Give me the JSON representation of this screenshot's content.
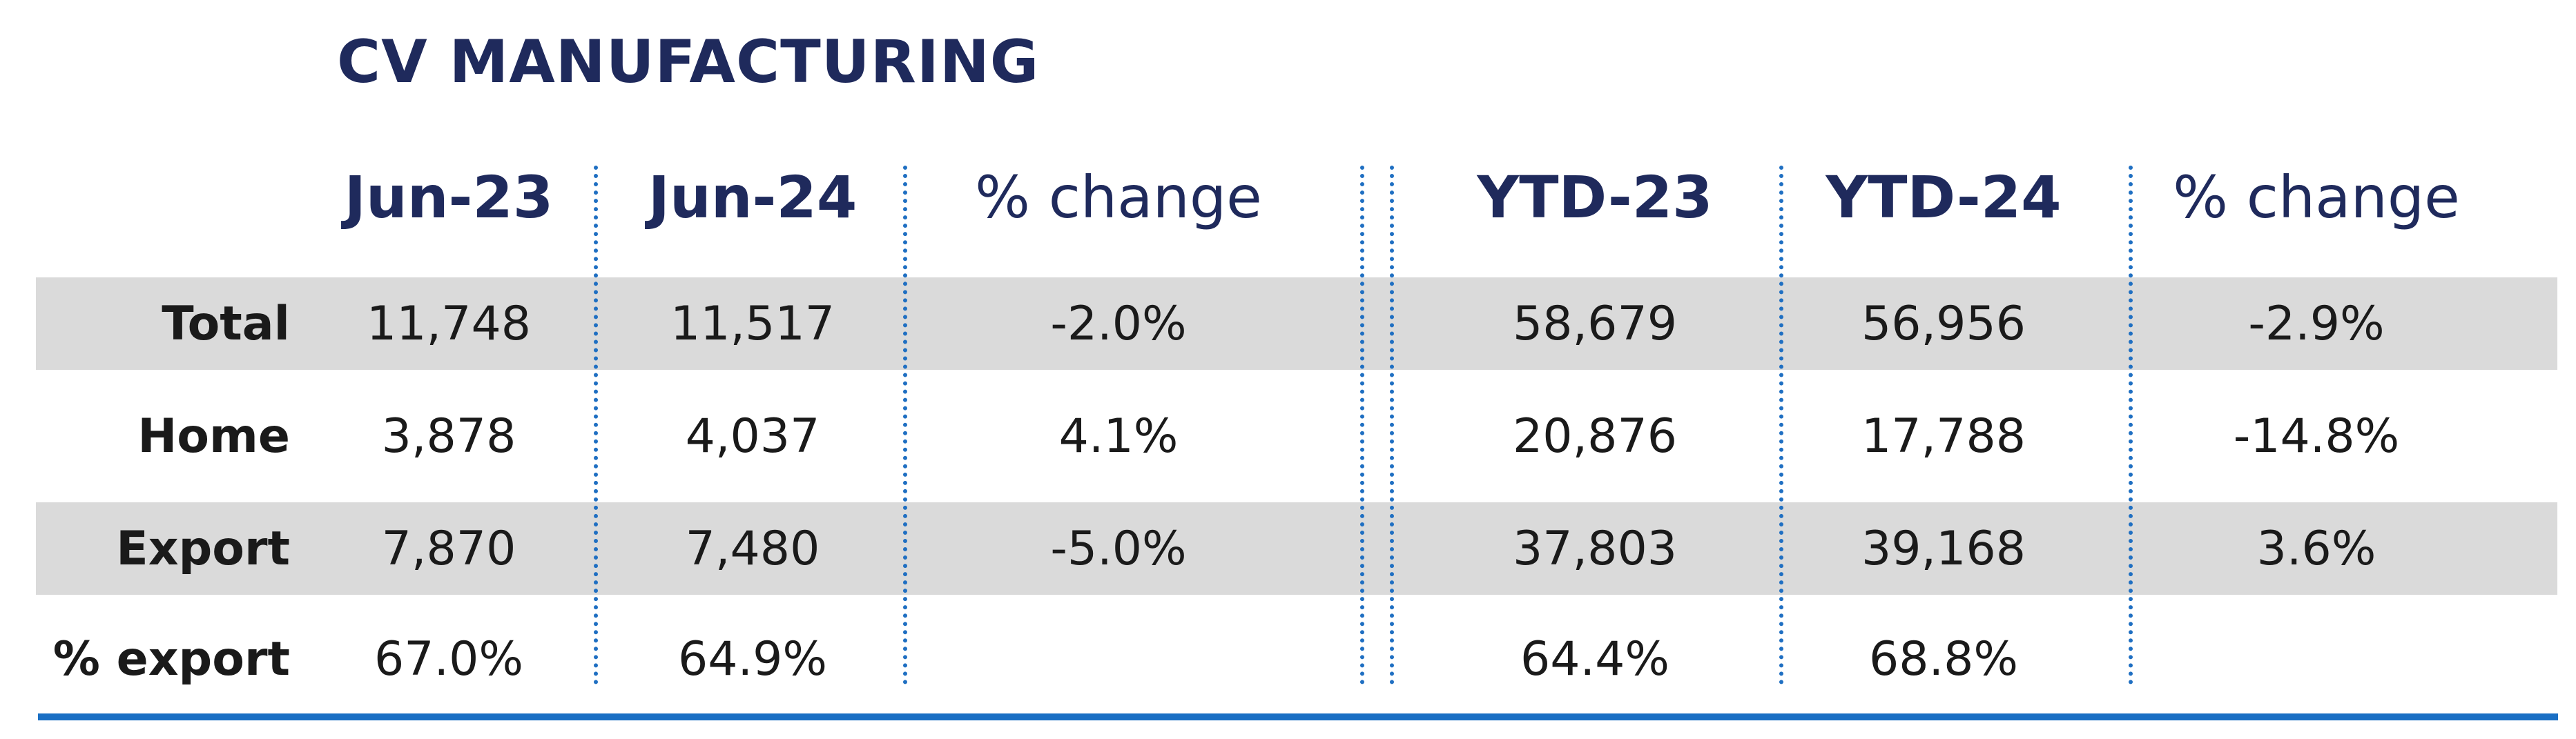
{
  "title": "CV MANUFACTURING",
  "columns": [
    "Jun-23",
    "Jun-24",
    "% change",
    "YTD-23",
    "YTD-24",
    "% change"
  ],
  "rows": [
    {
      "label": "Total",
      "values": [
        "11,748",
        "11,517",
        "-2.0%",
        "58,679",
        "56,956",
        "-2.9%"
      ]
    },
    {
      "label": "Home",
      "values": [
        "3,878",
        "4,037",
        "4.1%",
        "20,876",
        "17,788",
        "-14.8%"
      ]
    },
    {
      "label": "Export",
      "values": [
        "7,870",
        "7,480",
        "-5.0%",
        "37,803",
        "39,168",
        "3.6%"
      ]
    },
    {
      "label": "% export",
      "values": [
        "67.0%",
        "64.9%",
        "",
        "64.4%",
        "68.8%",
        ""
      ]
    }
  ],
  "colors": {
    "title": "#1f2a5c",
    "band": "#dadada",
    "divider": "#1f6fc2",
    "rule": "#1a6fc4"
  }
}
